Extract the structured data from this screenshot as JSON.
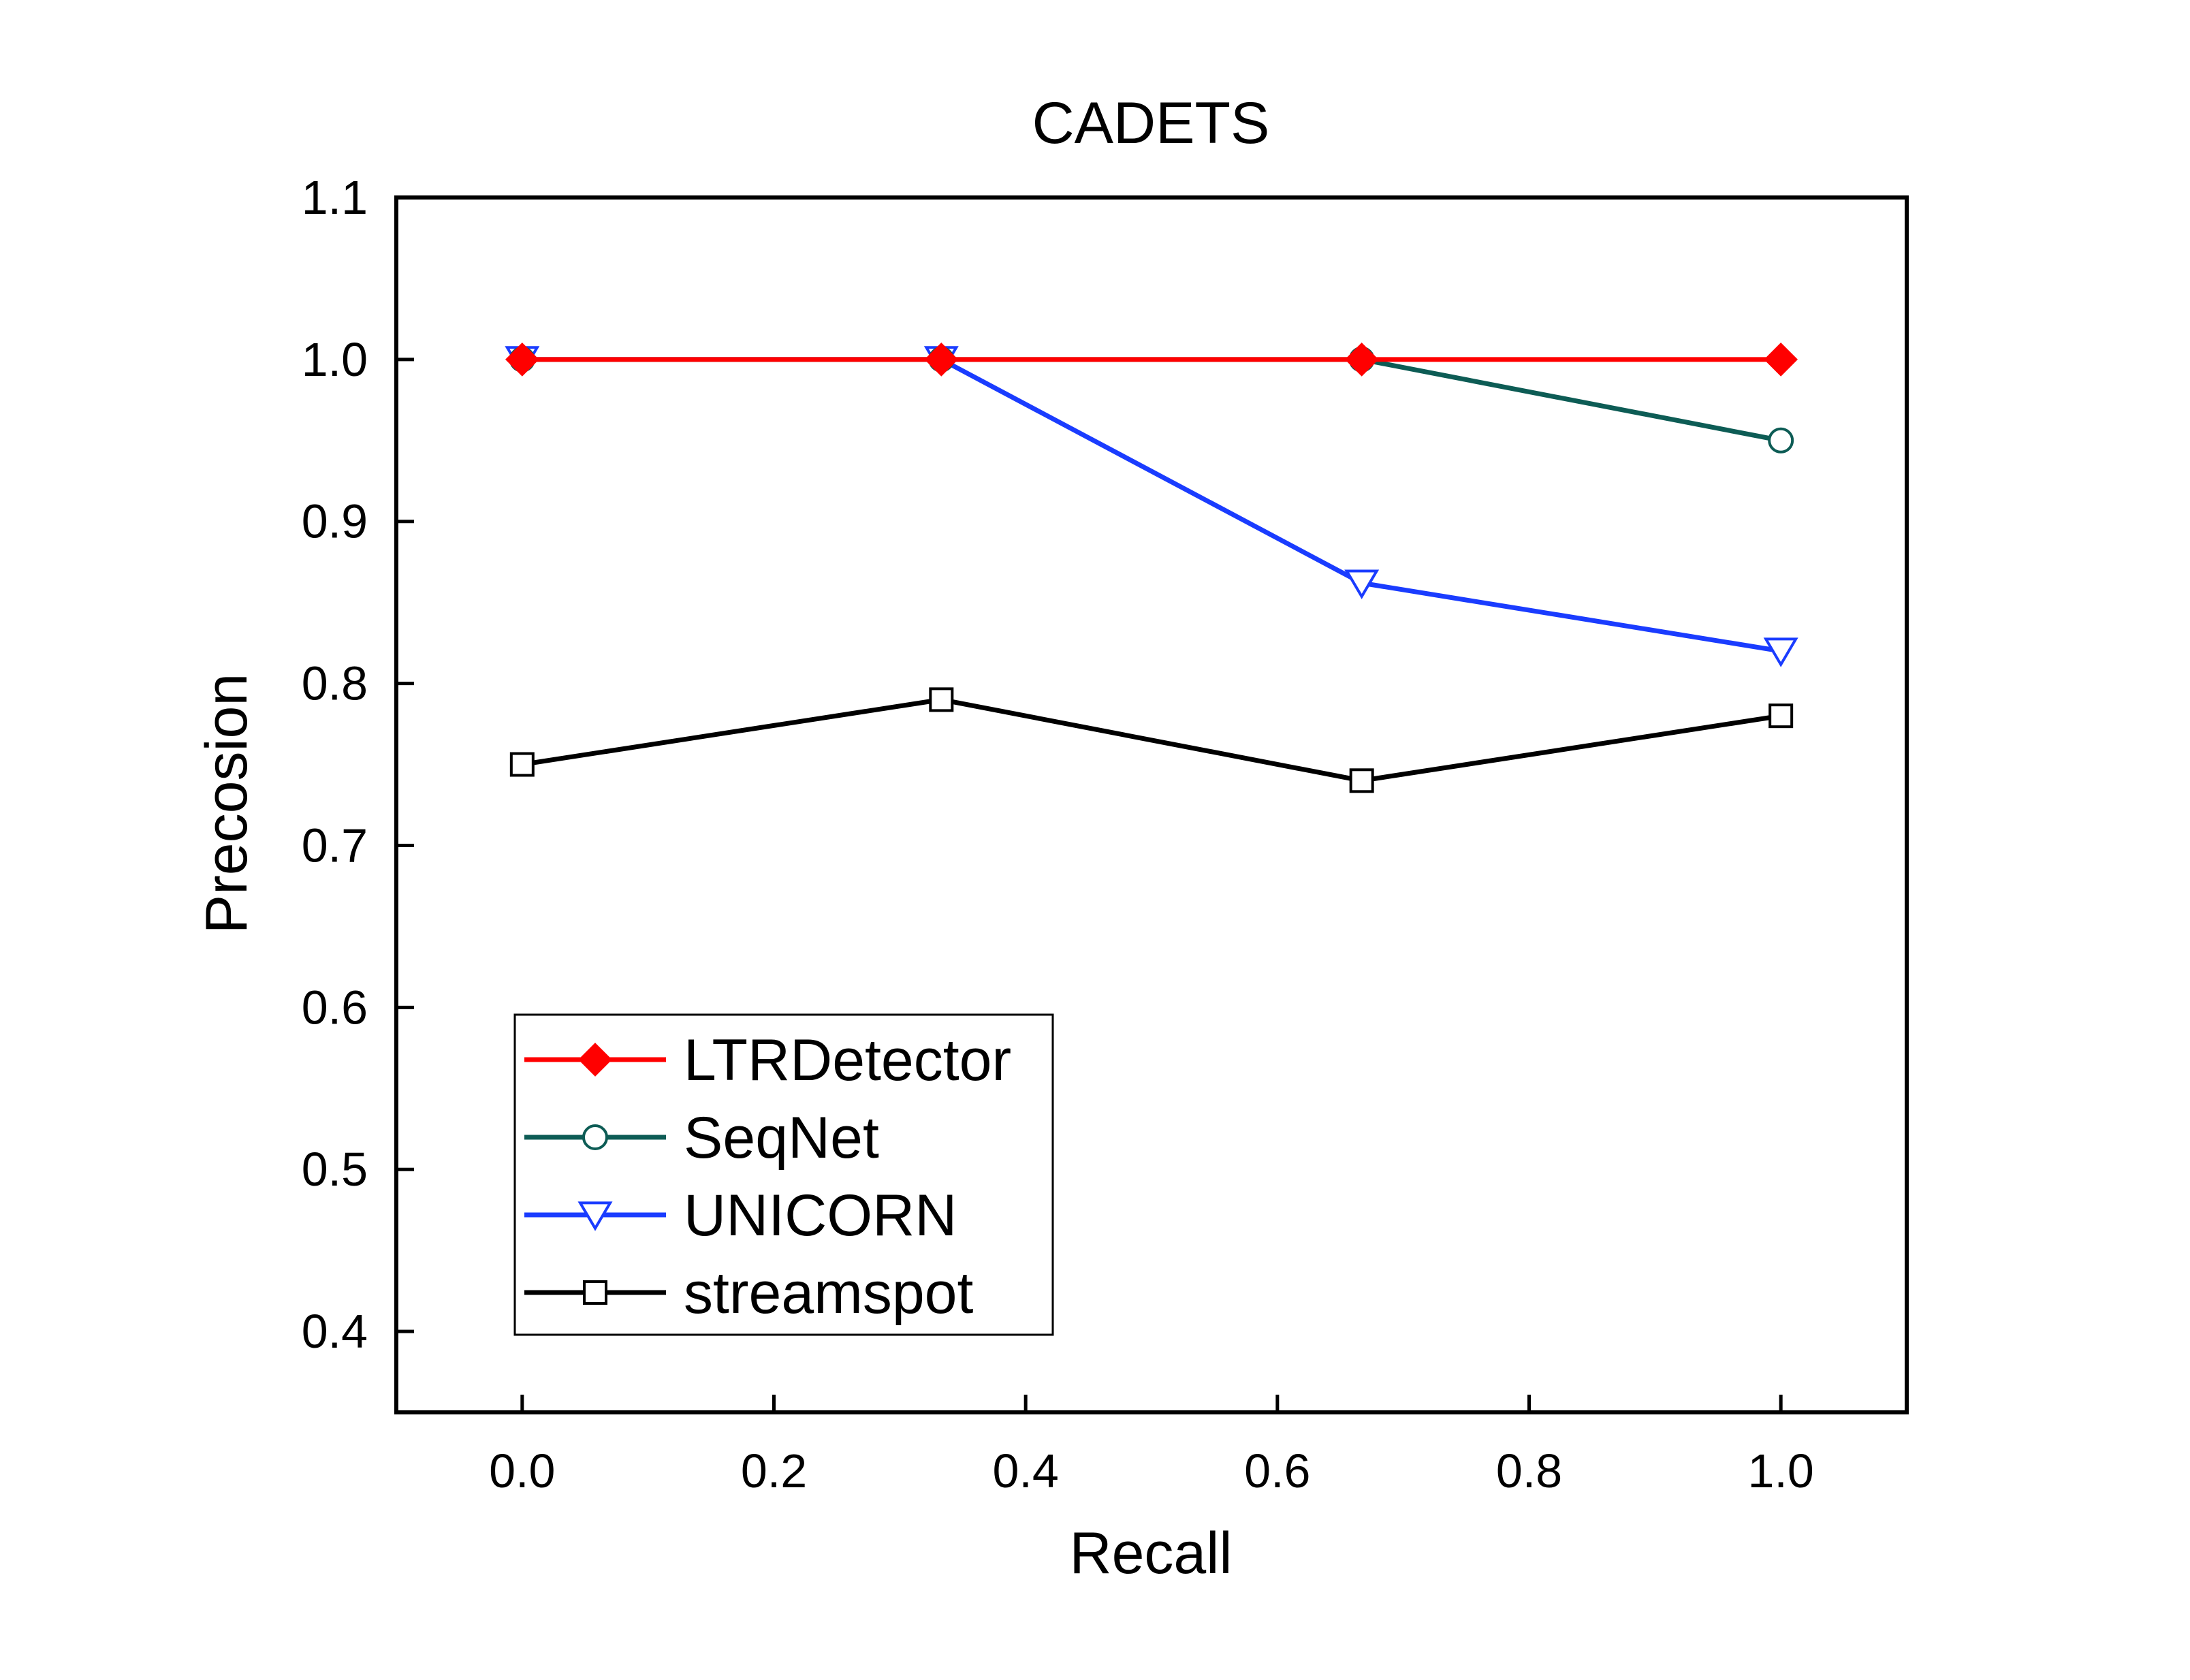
{
  "chart_data": {
    "type": "line",
    "title": "CADETS",
    "xlabel": "Recall",
    "ylabel": "Precosion",
    "xlim": [
      -0.1,
      1.1
    ],
    "ylim": [
      0.35,
      1.1
    ],
    "xticks": [
      "0.0",
      "0.2",
      "0.4",
      "0.6",
      "0.8",
      "1.0"
    ],
    "xtick_values": [
      0.0,
      0.2,
      0.4,
      0.6,
      0.8,
      1.0
    ],
    "yticks": [
      "0.4",
      "0.5",
      "0.6",
      "0.7",
      "0.8",
      "0.9",
      "1.0",
      "1.1"
    ],
    "ytick_values": [
      0.4,
      0.5,
      0.6,
      0.7,
      0.8,
      0.9,
      1.0,
      1.1
    ],
    "grid": false,
    "legend_position": "bottom-left",
    "x": [
      0.0,
      0.333,
      0.667,
      1.0
    ],
    "series": [
      {
        "name": "LTRDetector",
        "values": [
          1.0,
          1.0,
          1.0,
          1.0
        ],
        "color": "#ff0000",
        "marker": "diamond",
        "filled": true
      },
      {
        "name": "SeqNet",
        "values": [
          1.0,
          1.0,
          1.0,
          0.95
        ],
        "color": "#0d5c55",
        "marker": "circle",
        "filled": false
      },
      {
        "name": "UNICORN",
        "values": [
          1.0,
          1.0,
          0.862,
          0.82
        ],
        "color": "#1a3cff",
        "marker": "triangle-down",
        "filled": false
      },
      {
        "name": "streamspot",
        "values": [
          0.75,
          0.79,
          0.74,
          0.78
        ],
        "color": "#000000",
        "marker": "square",
        "filled": false
      }
    ]
  }
}
